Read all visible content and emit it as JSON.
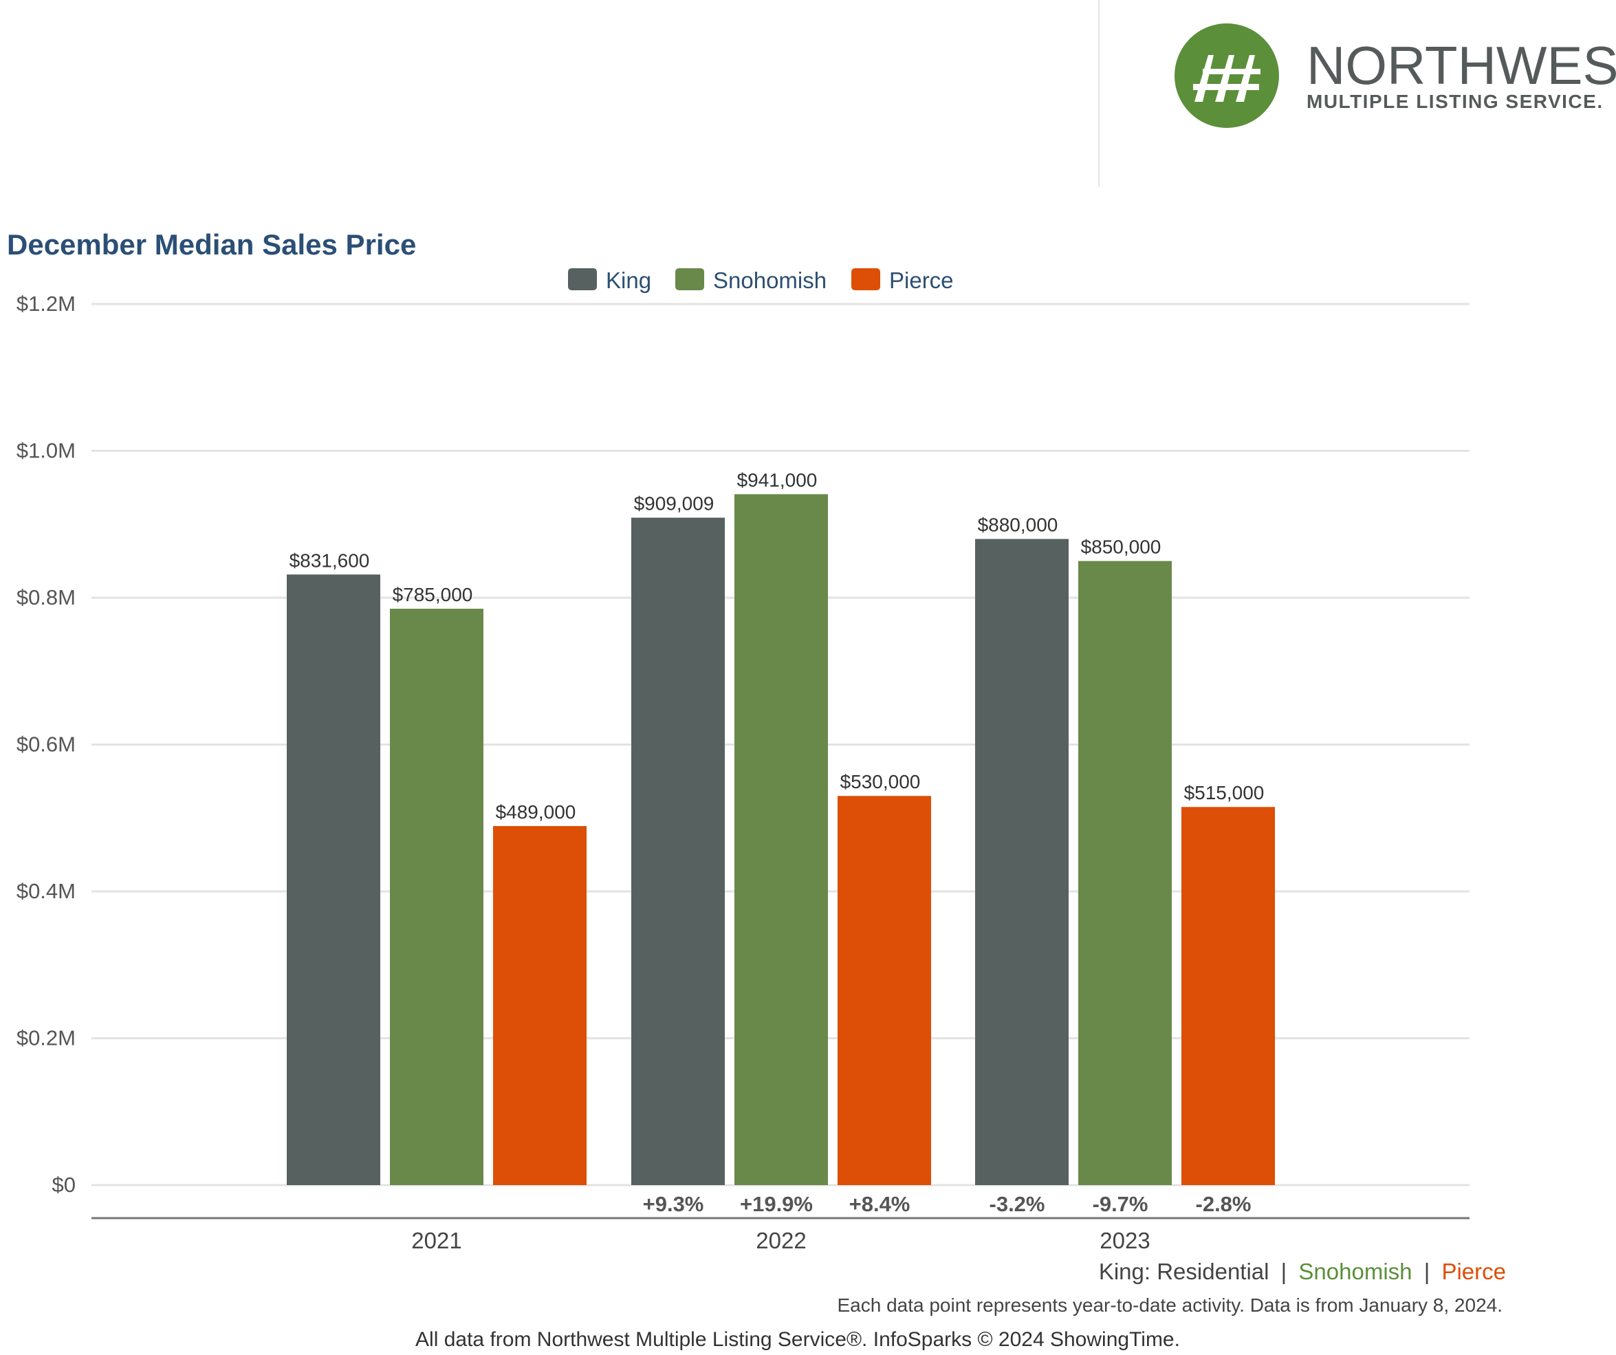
{
  "brand": {
    "name": "NORTHWEST",
    "subname": "MULTIPLE LISTING SERVICE.",
    "green": "#5b8f3a",
    "gray": "#555a5a"
  },
  "chart_data": {
    "type": "bar",
    "title": "December Median Sales Price",
    "categories": [
      "2021",
      "2022",
      "2023"
    ],
    "series": [
      {
        "name": "King",
        "color": "#566160",
        "values": [
          831600,
          909009,
          880000
        ],
        "labels": [
          "$831,600",
          "$909,009",
          "$880,000"
        ],
        "changes": [
          "",
          "+9.3%",
          "-3.2%"
        ]
      },
      {
        "name": "Snohomish",
        "color": "#69894a",
        "values": [
          785000,
          941000,
          850000
        ],
        "labels": [
          "$785,000",
          "$941,000",
          "$850,000"
        ],
        "changes": [
          "",
          "+19.9%",
          "-9.7%"
        ]
      },
      {
        "name": "Pierce",
        "color": "#dd4e06",
        "values": [
          489000,
          530000,
          515000
        ],
        "labels": [
          "$489,000",
          "$530,000",
          "$515,000"
        ],
        "changes": [
          "",
          "+8.4%",
          "-2.8%"
        ]
      }
    ],
    "ylim": [
      0,
      1200000
    ],
    "yticks": [
      {
        "value": 0,
        "label": "$0"
      },
      {
        "value": 200000,
        "label": "$0.2M"
      },
      {
        "value": 400000,
        "label": "$0.4M"
      },
      {
        "value": 600000,
        "label": "$0.6M"
      },
      {
        "value": 800000,
        "label": "$0.8M"
      },
      {
        "value": 1000000,
        "label": "$1.0M"
      },
      {
        "value": 1200000,
        "label": "$1.2M"
      }
    ],
    "grid": true,
    "legend_position": "top-center"
  },
  "footer": {
    "series_note_prefix": "King: Residential",
    "series_note_sep": "|",
    "series_note_snohomish": "Snohomish",
    "series_note_pierce": "Pierce",
    "ytd_note": "Each data point represents year-to-date activity. Data is from January 8, 2024.",
    "source_note": "All data from Northwest Multiple Listing Service®. InfoSparks © 2024 ShowingTime."
  }
}
